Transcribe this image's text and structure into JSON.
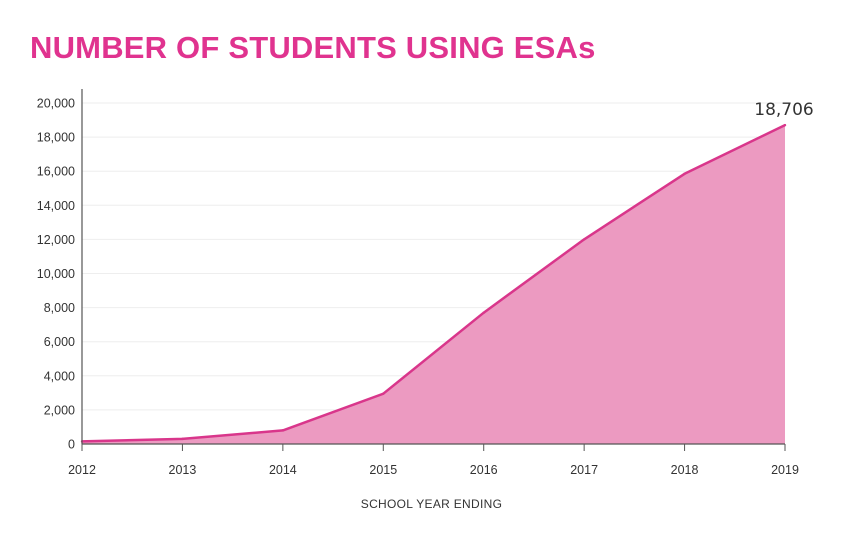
{
  "chart_data": {
    "type": "area",
    "title": "NUMBER OF STUDENTS USING ESAs",
    "xlabel": "SCHOOL YEAR ENDING",
    "ylabel": "",
    "x": [
      "2012",
      "2013",
      "2014",
      "2015",
      "2016",
      "2017",
      "2018",
      "2019"
    ],
    "values": [
      150,
      300,
      800,
      2950,
      7700,
      12000,
      15850,
      18706
    ],
    "ylim": [
      0,
      20000
    ],
    "yticks": [
      0,
      2000,
      4000,
      6000,
      8000,
      10000,
      12000,
      14000,
      16000,
      18000,
      20000
    ],
    "ytick_labels": [
      "0",
      "2,000",
      "4,000",
      "6,000",
      "8,000",
      "10,000",
      "12,000",
      "14,000",
      "16,000",
      "18,000",
      "20,000"
    ],
    "annotation": {
      "text": "18,706",
      "x": "2019",
      "value": 18706
    },
    "grid": true,
    "legend": "none",
    "colors": {
      "title": "#e0338f",
      "line": "#d9368b",
      "fill": "#ec9ac1",
      "grid": "#eeeeee",
      "axis": "#555555",
      "text": "#333333"
    }
  }
}
